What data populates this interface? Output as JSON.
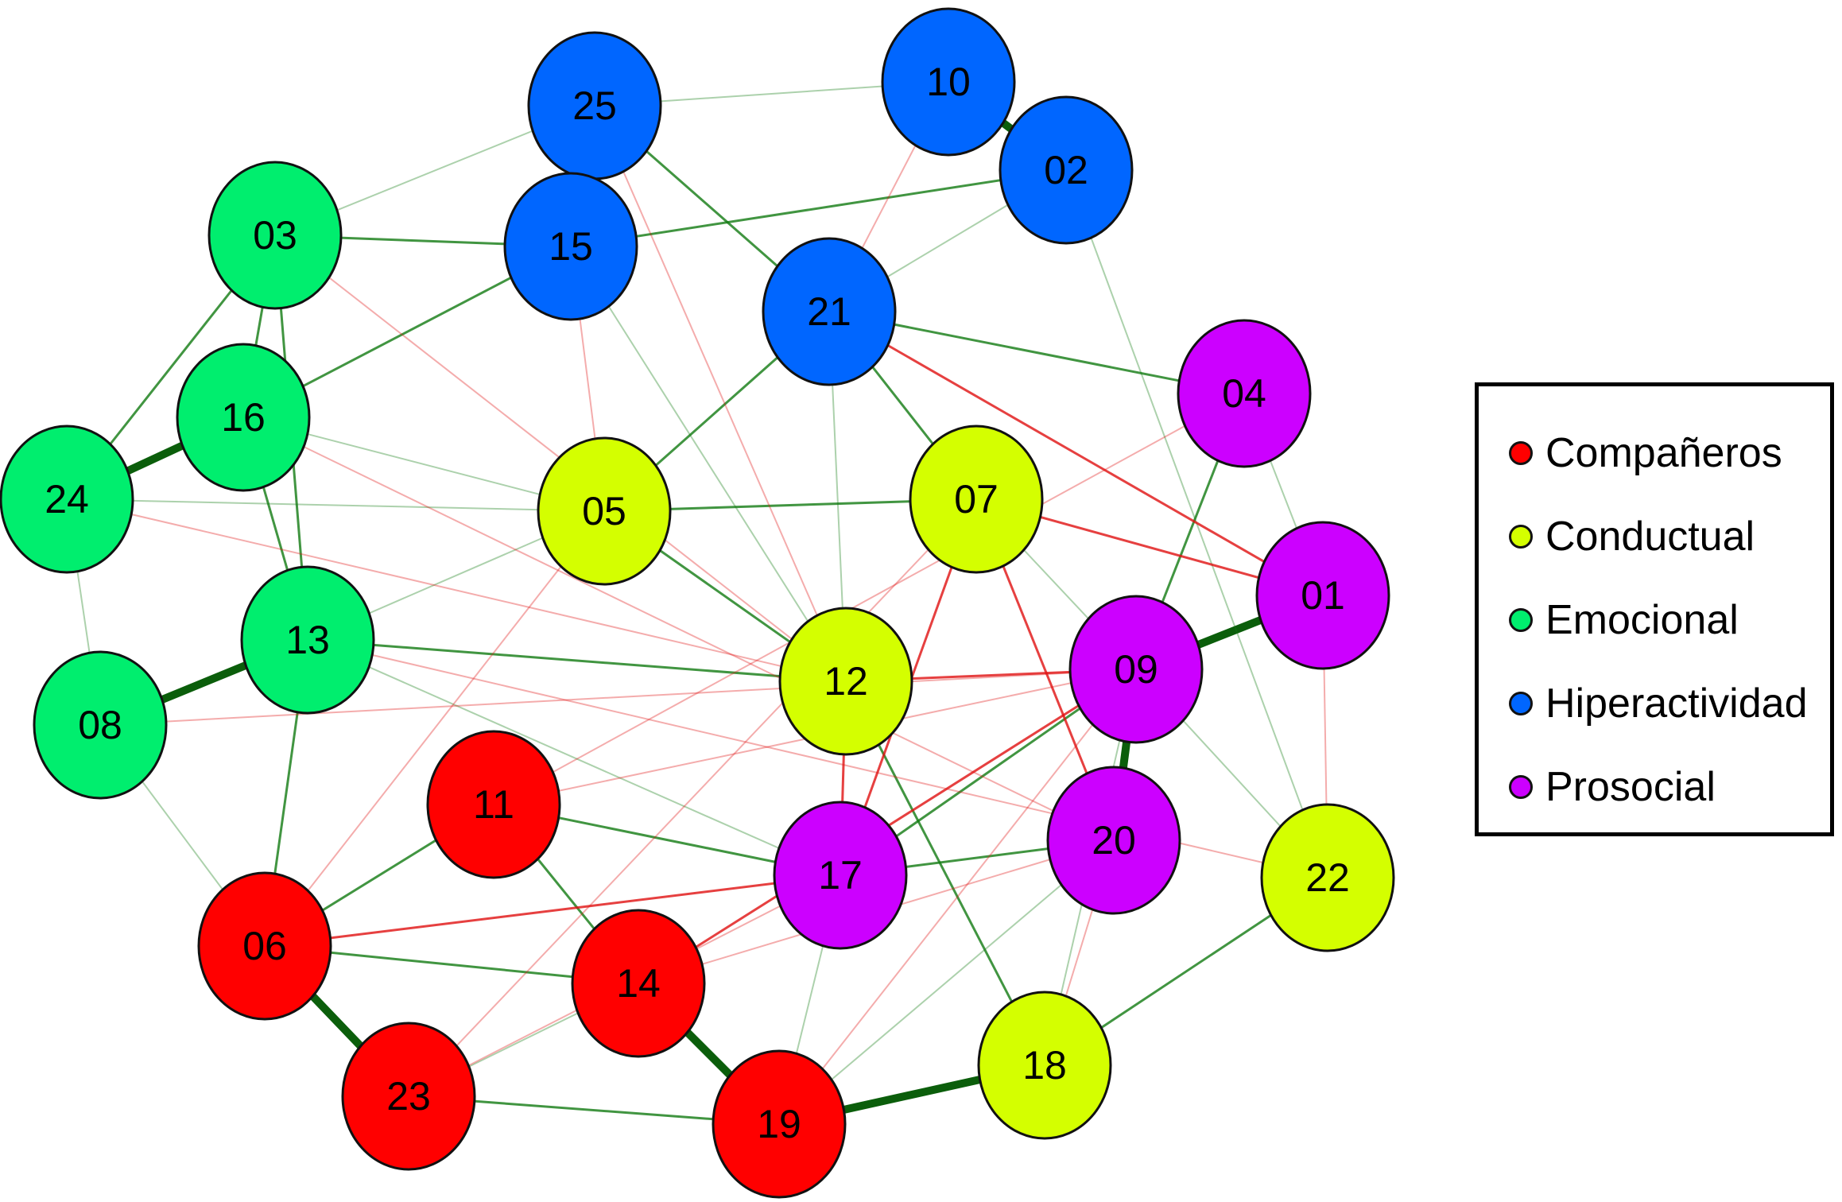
{
  "groups": [
    {
      "key": "companeros",
      "label": "Compañeros",
      "color": "#ff0000"
    },
    {
      "key": "conductual",
      "label": "Conductual",
      "color": "#d4ff00"
    },
    {
      "key": "emocional",
      "label": "Emocional",
      "color": "#00ee6e"
    },
    {
      "key": "hiperactividad",
      "label": "Hiperactividad",
      "color": "#0066ff"
    },
    {
      "key": "prosocial",
      "label": "Prosocial",
      "color": "#cc00ff"
    }
  ],
  "edge_colors": {
    "positive": "#117a11",
    "negative": "#e01010"
  },
  "nodes": [
    {
      "id": "25",
      "group": "hiperactividad"
    },
    {
      "id": "10",
      "group": "hiperactividad"
    },
    {
      "id": "02",
      "group": "hiperactividad"
    },
    {
      "id": "15",
      "group": "hiperactividad"
    },
    {
      "id": "21",
      "group": "hiperactividad"
    },
    {
      "id": "03",
      "group": "emocional"
    },
    {
      "id": "16",
      "group": "emocional"
    },
    {
      "id": "24",
      "group": "emocional"
    },
    {
      "id": "13",
      "group": "emocional"
    },
    {
      "id": "08",
      "group": "emocional"
    },
    {
      "id": "05",
      "group": "conductual"
    },
    {
      "id": "07",
      "group": "conductual"
    },
    {
      "id": "12",
      "group": "conductual"
    },
    {
      "id": "22",
      "group": "conductual"
    },
    {
      "id": "18",
      "group": "conductual"
    },
    {
      "id": "04",
      "group": "prosocial"
    },
    {
      "id": "01",
      "group": "prosocial"
    },
    {
      "id": "09",
      "group": "prosocial"
    },
    {
      "id": "20",
      "group": "prosocial"
    },
    {
      "id": "17",
      "group": "prosocial"
    },
    {
      "id": "11",
      "group": "companeros"
    },
    {
      "id": "06",
      "group": "companeros"
    },
    {
      "id": "14",
      "group": "companeros"
    },
    {
      "id": "23",
      "group": "companeros"
    },
    {
      "id": "19",
      "group": "companeros"
    }
  ],
  "edges": [
    [
      "10",
      "02",
      "+",
      3
    ],
    [
      "16",
      "24",
      "+",
      3
    ],
    [
      "13",
      "08",
      "+",
      3
    ],
    [
      "09",
      "01",
      "+",
      3
    ],
    [
      "09",
      "20",
      "+",
      3
    ],
    [
      "06",
      "23",
      "+",
      3
    ],
    [
      "14",
      "19",
      "+",
      3
    ],
    [
      "19",
      "18",
      "+",
      3
    ],
    [
      "03",
      "16",
      "+",
      2
    ],
    [
      "03",
      "13",
      "+",
      2
    ],
    [
      "16",
      "13",
      "+",
      2
    ],
    [
      "24",
      "08",
      "+",
      1
    ],
    [
      "24",
      "03",
      "+",
      2
    ],
    [
      "15",
      "25",
      "+",
      2
    ],
    [
      "15",
      "02",
      "+",
      2
    ],
    [
      "15",
      "16",
      "+",
      2
    ],
    [
      "15",
      "03",
      "+",
      2
    ],
    [
      "21",
      "07",
      "+",
      2
    ],
    [
      "21",
      "04",
      "+",
      2
    ],
    [
      "21",
      "05",
      "+",
      2
    ],
    [
      "05",
      "07",
      "+",
      2
    ],
    [
      "05",
      "12",
      "+",
      2
    ],
    [
      "13",
      "12",
      "+",
      2
    ],
    [
      "13",
      "05",
      "+",
      1
    ],
    [
      "11",
      "14",
      "+",
      2
    ],
    [
      "11",
      "17",
      "+",
      2
    ],
    [
      "06",
      "14",
      "+",
      2
    ],
    [
      "06",
      "11",
      "+",
      2
    ],
    [
      "23",
      "19",
      "+",
      2
    ],
    [
      "23",
      "14",
      "+",
      1
    ],
    [
      "17",
      "20",
      "+",
      2
    ],
    [
      "17",
      "09",
      "+",
      2
    ],
    [
      "04",
      "09",
      "+",
      2
    ],
    [
      "04",
      "01",
      "+",
      1
    ],
    [
      "22",
      "18",
      "+",
      2
    ],
    [
      "18",
      "12",
      "+",
      2
    ],
    [
      "07",
      "09",
      "+",
      1
    ],
    [
      "02",
      "21",
      "+",
      1
    ],
    [
      "25",
      "21",
      "+",
      2
    ],
    [
      "03",
      "25",
      "+",
      1
    ],
    [
      "10",
      "25",
      "+",
      1
    ],
    [
      "16",
      "05",
      "+",
      1
    ],
    [
      "24",
      "05",
      "+",
      1
    ],
    [
      "06",
      "13",
      "+",
      2
    ],
    [
      "19",
      "17",
      "+",
      1
    ],
    [
      "18",
      "09",
      "+",
      1
    ],
    [
      "22",
      "09",
      "+",
      1
    ],
    [
      "02",
      "22",
      "+",
      1
    ],
    [
      "08",
      "06",
      "+",
      1
    ],
    [
      "13",
      "17",
      "+",
      1
    ],
    [
      "21",
      "12",
      "+",
      1
    ],
    [
      "15",
      "12",
      "+",
      1
    ],
    [
      "19",
      "20",
      "+",
      1
    ],
    [
      "12",
      "09",
      "-",
      2
    ],
    [
      "07",
      "20",
      "-",
      2
    ],
    [
      "07",
      "01",
      "-",
      2
    ],
    [
      "21",
      "01",
      "-",
      2
    ],
    [
      "12",
      "17",
      "-",
      2
    ],
    [
      "07",
      "17",
      "-",
      2
    ],
    [
      "14",
      "09",
      "-",
      2
    ],
    [
      "14",
      "20",
      "-",
      1
    ],
    [
      "06",
      "17",
      "-",
      2
    ],
    [
      "11",
      "09",
      "-",
      1
    ],
    [
      "06",
      "05",
      "-",
      1
    ],
    [
      "23",
      "07",
      "-",
      1
    ],
    [
      "15",
      "05",
      "-",
      1
    ],
    [
      "01",
      "22",
      "-",
      1
    ],
    [
      "24",
      "12",
      "-",
      1
    ],
    [
      "16",
      "20",
      "-",
      1
    ],
    [
      "13",
      "22",
      "-",
      1
    ],
    [
      "25",
      "12",
      "-",
      1
    ],
    [
      "08",
      "09",
      "-",
      1
    ],
    [
      "20",
      "18",
      "-",
      1
    ],
    [
      "10",
      "21",
      "-",
      1
    ],
    [
      "03",
      "12",
      "-",
      1
    ],
    [
      "11",
      "04",
      "-",
      1
    ],
    [
      "23",
      "17",
      "-",
      1
    ],
    [
      "19",
      "09",
      "-",
      1
    ]
  ]
}
